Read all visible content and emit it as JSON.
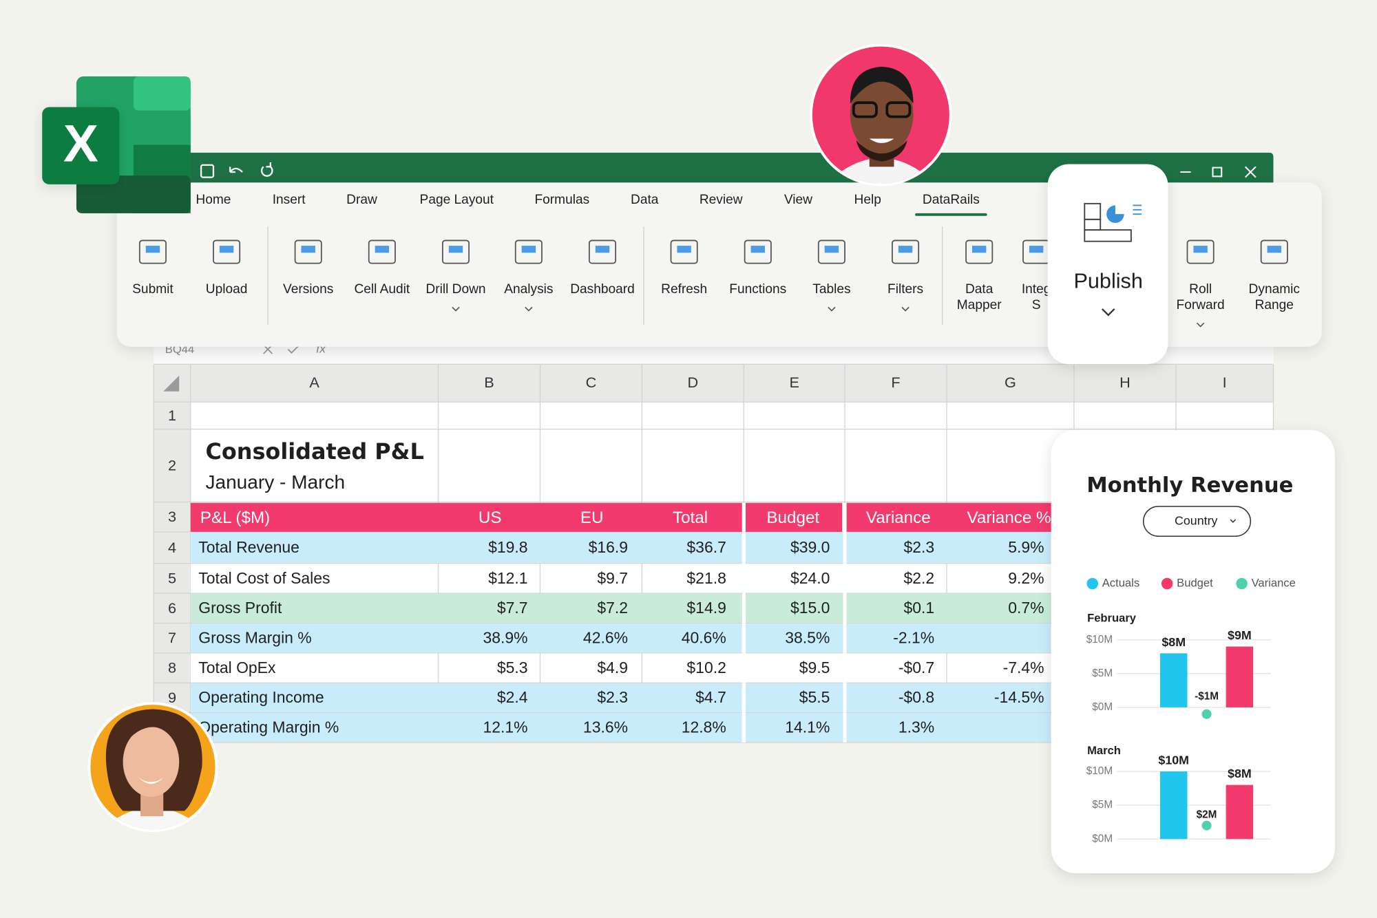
{
  "logo_letter": "X",
  "ribbon": {
    "tabs": [
      "Home",
      "Insert",
      "Draw",
      "Page Layout",
      "Formulas",
      "Data",
      "Review",
      "View",
      "Help",
      "DataRails"
    ],
    "active_tab": 9,
    "buttons": [
      {
        "lines": [
          "Submit"
        ]
      },
      {
        "lines": [
          "Upload"
        ]
      },
      {
        "lines": [
          "Versions"
        ]
      },
      {
        "lines": [
          "Cell Audit"
        ]
      },
      {
        "lines": [
          "Drill Down"
        ],
        "dropdown": true
      },
      {
        "lines": [
          "Analysis"
        ],
        "dropdown": true
      },
      {
        "lines": [
          "Dashboard"
        ]
      },
      {
        "lines": [
          "Refresh"
        ]
      },
      {
        "lines": [
          "Functions"
        ]
      },
      {
        "lines": [
          "Tables"
        ],
        "dropdown": true
      },
      {
        "lines": [
          "Filters"
        ],
        "dropdown": true
      },
      {
        "lines": [
          "Data",
          "Mapper"
        ]
      },
      {
        "lines": [
          "Integ",
          "S"
        ]
      },
      {
        "lines": [
          "Roll",
          "Forward"
        ],
        "dropdown": true
      },
      {
        "lines": [
          "Dynamic",
          "Range"
        ]
      }
    ],
    "publish": {
      "label": "Publish",
      "dropdown": true
    }
  },
  "formula_bar": {
    "name_box": "BQ44",
    "fx": "fx"
  },
  "sheet": {
    "columns": [
      "A",
      "B",
      "C",
      "D",
      "E",
      "F",
      "G",
      "H",
      "I"
    ],
    "row_numbers": [
      1,
      2,
      3,
      4,
      5,
      6,
      7,
      8,
      9
    ],
    "title": "Consolidated P&L",
    "subtitle": "January - March",
    "header": [
      "P&L ($M)",
      "US",
      "EU",
      "Total",
      "Budget",
      "Variance",
      "Variance %"
    ],
    "rows": [
      {
        "style": "blue",
        "cells": [
          "Total Revenue",
          "$19.8",
          "$16.9",
          "$36.7",
          "$39.0",
          "$2.3",
          "5.9%"
        ]
      },
      {
        "style": "white",
        "cells": [
          "Total Cost of Sales",
          "$12.1",
          "$9.7",
          "$21.8",
          "$24.0",
          "$2.2",
          "9.2%"
        ]
      },
      {
        "style": "green",
        "cells": [
          "Gross Profit",
          "$7.7",
          "$7.2",
          "$14.9",
          "$15.0",
          "$0.1",
          "0.7%"
        ]
      },
      {
        "style": "blue",
        "cells": [
          "Gross Margin %",
          "38.9%",
          "42.6%",
          "40.6%",
          "38.5%",
          "-2.1%",
          null
        ]
      },
      {
        "style": "white",
        "cells": [
          "Total OpEx",
          "$5.3",
          "$4.9",
          "$10.2",
          "$9.5",
          "-$0.7",
          "-7.4%"
        ]
      },
      {
        "style": "blue",
        "cells": [
          "Operating Income",
          "$2.4",
          "$2.3",
          "$4.7",
          "$5.5",
          "-$0.8",
          "-14.5%"
        ]
      },
      {
        "style": "blue",
        "cells": [
          "Operating Margin %",
          "12.1%",
          "13.6%",
          "12.8%",
          "14.1%",
          "1.3%",
          null
        ]
      }
    ]
  },
  "card": {
    "title": "Monthly Revenue",
    "filter": "Country"
  },
  "chart_data": {
    "type": "bar",
    "categories": [
      "February",
      "March"
    ],
    "ylim": [
      0,
      10
    ],
    "yticks": [
      {
        "value": 10,
        "label": "$10M"
      },
      {
        "value": 5,
        "label": "$5M"
      },
      {
        "value": 0,
        "label": "$0M"
      }
    ],
    "grid": true,
    "series": [
      {
        "name": "Actuals",
        "color": "#22c5ee",
        "values": [
          8,
          10
        ],
        "value_labels": [
          "$8M",
          "$10M"
        ]
      },
      {
        "name": "Budget",
        "color": "#f23a6c",
        "values": [
          9,
          8
        ],
        "value_labels": [
          "$9M",
          "$8M"
        ]
      },
      {
        "name": "Variance",
        "color": "#4fd1ae",
        "mark": "dot",
        "values": [
          -1,
          2
        ],
        "value_labels": [
          "-$1M",
          "$2M"
        ]
      }
    ]
  }
}
